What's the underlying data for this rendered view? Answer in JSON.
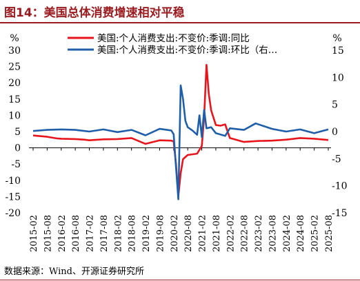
{
  "header": {
    "title": "图14：美国总体消费增速相对平稳"
  },
  "source": {
    "text": "数据来源：Wind、开源证券研究所"
  },
  "colors": {
    "accent": "#9b1c20",
    "series_yoy": "#e8141c",
    "series_mom": "#1f5ea8"
  },
  "chart_data": {
    "type": "line",
    "grid": false,
    "legend_position": "top",
    "y_left": {
      "unit": "%",
      "range": [
        -20,
        30
      ],
      "ticks": [
        30,
        25,
        20,
        15,
        10,
        5,
        0,
        -5,
        -10,
        -15,
        -20
      ]
    },
    "y_right": {
      "unit": "%",
      "range": [
        -15,
        15
      ],
      "ticks": [
        15,
        10,
        5,
        0,
        -5,
        -10,
        -15
      ]
    },
    "x_ticks": [
      "2015-02",
      "2015-08",
      "2016-02",
      "2016-08",
      "2017-02",
      "2017-08",
      "2018-02",
      "2018-08",
      "2019-02",
      "2019-08",
      "2020-02",
      "2020-08",
      "2021-02",
      "2021-08",
      "2022-02",
      "2022-08",
      "2023-02",
      "2023-08",
      "2024-02",
      "2024-08",
      "2025-02",
      "2025-08"
    ],
    "series": [
      {
        "name": "美国:个人消费支出:不变价:季调:同比",
        "axis": "left",
        "points": [
          [
            "2015-02",
            3.8
          ],
          [
            "2015-08",
            3.4
          ],
          [
            "2015-12",
            2.9
          ],
          [
            "2016-02",
            2.8
          ],
          [
            "2016-08",
            2.7
          ],
          [
            "2016-12",
            2.5
          ],
          [
            "2017-02",
            2.3
          ],
          [
            "2017-08",
            2.6
          ],
          [
            "2018-02",
            2.7
          ],
          [
            "2018-08",
            3.0
          ],
          [
            "2019-02",
            1.2
          ],
          [
            "2019-08",
            2.3
          ],
          [
            "2020-01",
            2.2
          ],
          [
            "2020-02",
            2.0
          ],
          [
            "2020-03",
            -5.0
          ],
          [
            "2020-04",
            -14.8
          ],
          [
            "2020-05",
            -7.8
          ],
          [
            "2020-06",
            -3.5
          ],
          [
            "2020-08",
            -2.2
          ],
          [
            "2020-12",
            -1.8
          ],
          [
            "2021-02",
            0.5
          ],
          [
            "2021-03",
            9.5
          ],
          [
            "2021-04",
            25.5
          ],
          [
            "2021-05",
            16.5
          ],
          [
            "2021-06",
            11.5
          ],
          [
            "2021-08",
            7.0
          ],
          [
            "2021-10",
            6.8
          ],
          [
            "2021-12",
            7.2
          ],
          [
            "2022-02",
            3.0
          ],
          [
            "2022-08",
            1.8
          ],
          [
            "2023-02",
            2.1
          ],
          [
            "2023-08",
            2.2
          ],
          [
            "2024-02",
            2.5
          ],
          [
            "2024-08",
            3.0
          ],
          [
            "2025-02",
            2.8
          ],
          [
            "2025-08",
            2.4
          ]
        ]
      },
      {
        "name": "美国:个人消费支出:不变价:季调:环比（右…",
        "axis": "right",
        "points": [
          [
            "2015-02",
            0.1
          ],
          [
            "2015-08",
            0.3
          ],
          [
            "2016-02",
            0.4
          ],
          [
            "2016-08",
            0.3
          ],
          [
            "2017-02",
            0.0
          ],
          [
            "2017-08",
            0.4
          ],
          [
            "2018-02",
            -0.1
          ],
          [
            "2018-08",
            0.3
          ],
          [
            "2019-02",
            -0.7
          ],
          [
            "2019-08",
            0.5
          ],
          [
            "2020-01",
            0.2
          ],
          [
            "2020-02",
            -0.5
          ],
          [
            "2020-03",
            -6.6
          ],
          [
            "2020-04",
            -12.5
          ],
          [
            "2020-05",
            8.5
          ],
          [
            "2020-06",
            6.0
          ],
          [
            "2020-07",
            2.0
          ],
          [
            "2020-08",
            0.8
          ],
          [
            "2020-10",
            0.2
          ],
          [
            "2020-12",
            -0.6
          ],
          [
            "2021-01",
            3.0
          ],
          [
            "2021-02",
            -1.0
          ],
          [
            "2021-03",
            4.0
          ],
          [
            "2021-04",
            0.6
          ],
          [
            "2021-06",
            0.8
          ],
          [
            "2021-08",
            -0.3
          ],
          [
            "2021-12",
            -0.8
          ],
          [
            "2022-02",
            0.6
          ],
          [
            "2022-08",
            0.3
          ],
          [
            "2023-01",
            1.5
          ],
          [
            "2023-08",
            0.5
          ],
          [
            "2024-02",
            0.0
          ],
          [
            "2024-08",
            0.4
          ],
          [
            "2025-02",
            -0.3
          ],
          [
            "2025-08",
            0.4
          ]
        ]
      }
    ]
  }
}
